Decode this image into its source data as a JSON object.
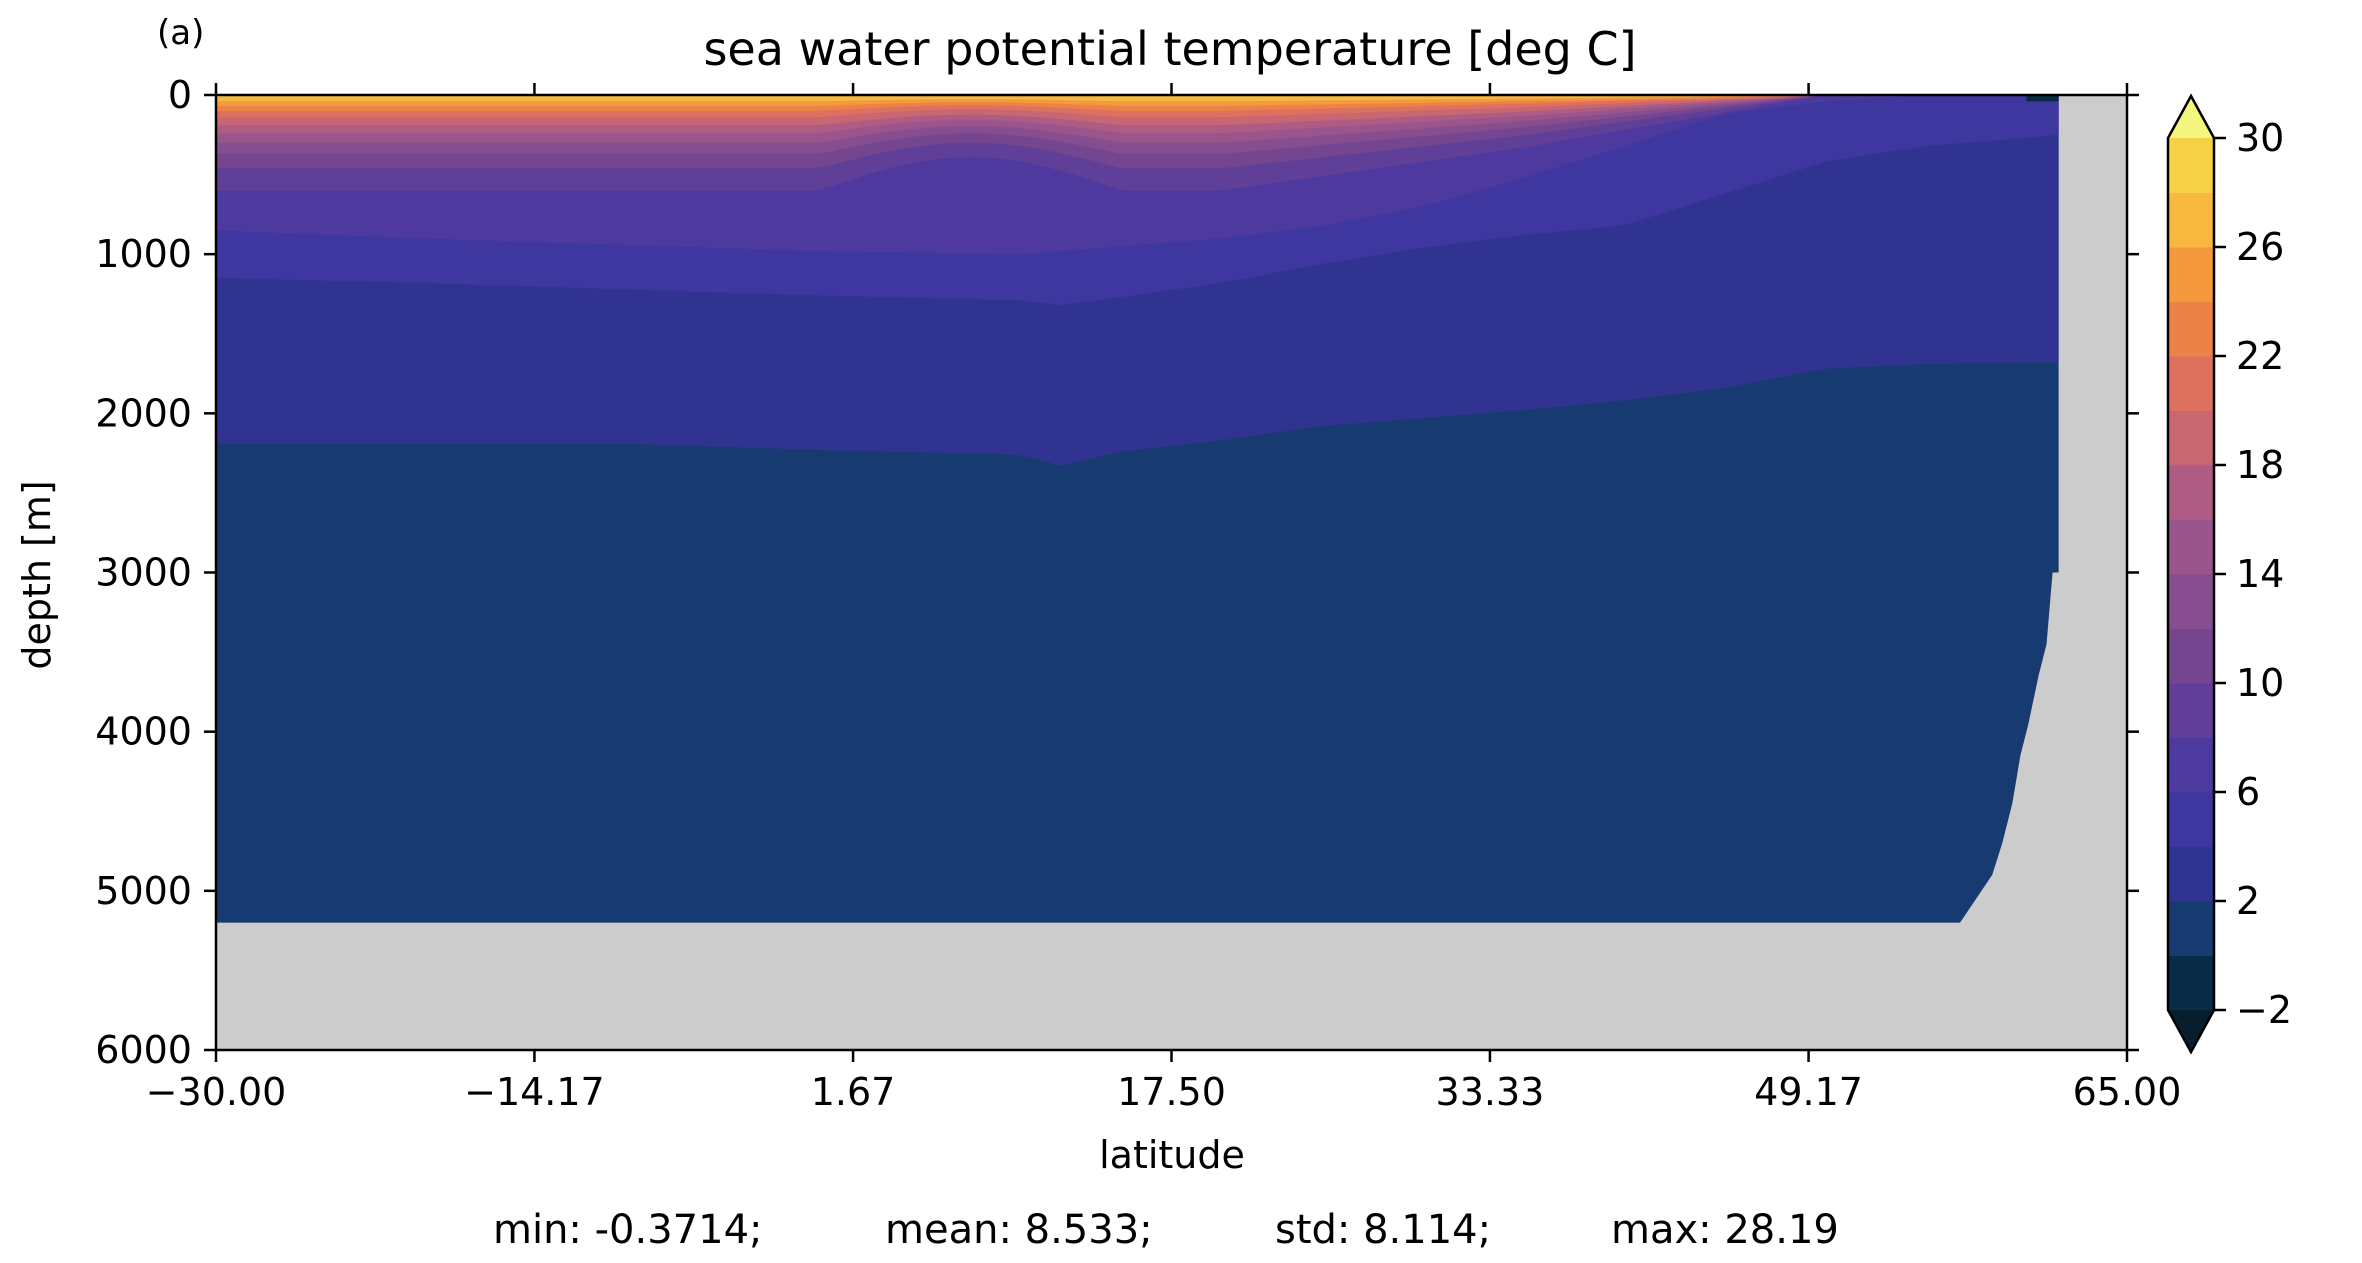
{
  "panel_label": "(a)",
  "chart_data": {
    "type": "heatmap",
    "title": "sea water potential temperature [deg C]",
    "xlabel": "latitude",
    "ylabel": "depth [m]",
    "xlim": [
      -30,
      65
    ],
    "ylim": [
      6000,
      0
    ],
    "y_inverted": true,
    "xticks": [
      -30.0,
      -14.17,
      1.67,
      17.5,
      33.33,
      49.17,
      65.0
    ],
    "xtick_labels": [
      "−30.00",
      "−14.17",
      "1.67",
      "17.50",
      "33.33",
      "49.17",
      "65.00"
    ],
    "yticks": [
      0,
      1000,
      2000,
      3000,
      4000,
      5000,
      6000
    ],
    "ytick_labels": [
      "0",
      "1000",
      "2000",
      "3000",
      "4000",
      "5000",
      "6000"
    ],
    "colorbar": {
      "levels": [
        -2,
        0,
        2,
        4,
        6,
        8,
        10,
        12,
        14,
        16,
        18,
        20,
        22,
        24,
        26,
        28,
        30
      ],
      "tick_values": [
        -2,
        2,
        6,
        10,
        14,
        18,
        22,
        26,
        30
      ],
      "tick_labels": [
        "−2",
        "2",
        "6",
        "10",
        "14",
        "18",
        "22",
        "26",
        "30"
      ],
      "extend": "both",
      "colors": [
        "#0a2b45",
        "#173a70",
        "#30338f",
        "#3e379f",
        "#4e3a9f",
        "#603f98",
        "#744690",
        "#874e8f",
        "#9a558c",
        "#ae5c84",
        "#c86672",
        "#dd705e",
        "#ec8248",
        "#f59a3c",
        "#f8b83f",
        "#f6d148",
        "#eee657"
      ],
      "under_color": "#071e2e",
      "over_color": "#f3f77d"
    },
    "land_color": "#cccccc",
    "z_bands": [
      {
        "range": [
          28,
          30
        ],
        "depth_top": 0,
        "depth_bottom": 10
      },
      {
        "range": [
          26,
          28
        ],
        "depth_top": 10,
        "depth_bottom": 40
      },
      {
        "range": [
          24,
          26
        ],
        "depth_top": 40,
        "depth_bottom": 70
      },
      {
        "range": [
          22,
          24
        ],
        "depth_top": 70,
        "depth_bottom": 100
      },
      {
        "range": [
          20,
          22
        ],
        "depth_top": 100,
        "depth_bottom": 140
      },
      {
        "range": [
          18,
          20
        ],
        "depth_top": 140,
        "depth_bottom": 190
      },
      {
        "range": [
          16,
          18
        ],
        "depth_top": 190,
        "depth_bottom": 240
      },
      {
        "range": [
          14,
          16
        ],
        "depth_top": 240,
        "depth_bottom": 300
      },
      {
        "range": [
          12,
          14
        ],
        "depth_top": 300,
        "depth_bottom": 370
      },
      {
        "range": [
          10,
          12
        ],
        "depth_top": 370,
        "depth_bottom": 460
      },
      {
        "range": [
          8,
          10
        ],
        "depth_top": 460,
        "depth_bottom": 600
      },
      {
        "range": [
          6,
          8
        ],
        "depth_top": 600,
        "depth_bottom": 850
      },
      {
        "range": [
          4,
          6
        ],
        "depth_top": 850,
        "depth_bottom": 1200
      },
      {
        "range": [
          2,
          4
        ],
        "depth_top": 1200,
        "depth_bottom": 2200
      },
      {
        "range": [
          0,
          2
        ],
        "depth_top": 2200,
        "depth_bottom": 5200
      }
    ],
    "isotherm_2C_depth": {
      "lat": [
        -30,
        -20,
        -10,
        0,
        10,
        12,
        15,
        20,
        25,
        30,
        35,
        40,
        45,
        50,
        55,
        60,
        61.6
      ],
      "depth": [
        2190,
        2190,
        2190,
        2230,
        2260,
        2330,
        2240,
        2170,
        2080,
        2030,
        1980,
        1920,
        1840,
        1720,
        1690,
        1680,
        1680
      ]
    },
    "isotherm_4C_depth": {
      "lat": [
        -30,
        -20,
        -10,
        0,
        10,
        12,
        15,
        20,
        25,
        30,
        35,
        40,
        45,
        50,
        55,
        60,
        61.6
      ],
      "depth": [
        1150,
        1180,
        1220,
        1260,
        1290,
        1320,
        1270,
        1180,
        1060,
        960,
        880,
        820,
        620,
        420,
        320,
        270,
        250
      ]
    },
    "isotherm_6C_depth": {
      "lat": [
        -30,
        -20,
        -10,
        0,
        10,
        15,
        20,
        25,
        30,
        35,
        40,
        45,
        50,
        55,
        61.6
      ],
      "depth": [
        850,
        900,
        940,
        980,
        1000,
        950,
        900,
        820,
        700,
        520,
        320,
        120,
        40,
        0,
        0
      ]
    },
    "bottom_depth": {
      "lat": [
        -30,
        56.7,
        57.5,
        58.3,
        58.8,
        59.3,
        59.7,
        60.1,
        60.6,
        61.0,
        61.3,
        61.6,
        61.6
      ],
      "depth": [
        5200,
        5200,
        5050,
        4900,
        4700,
        4450,
        4150,
        3950,
        3650,
        3450,
        3000,
        3000,
        0
      ]
    },
    "stats": {
      "min": -0.3714,
      "mean": 8.533,
      "std": 8.114,
      "max": 28.19
    }
  },
  "stats_text": {
    "min": "min: -0.3714;",
    "mean": "mean: 8.533;",
    "std": "std: 8.114;",
    "max": "max: 28.19"
  }
}
